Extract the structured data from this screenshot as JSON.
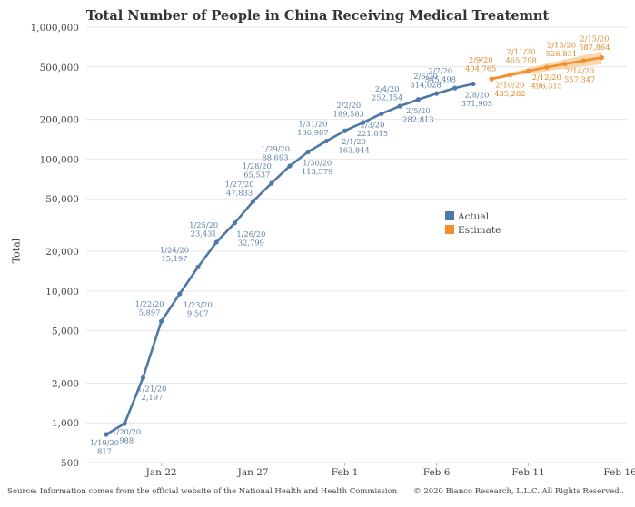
{
  "title": "Total Number of People in China Receiving Medical Treatemnt",
  "footer": {
    "source": "Source: Information comes from the official website of the National Health and Health Commission",
    "copyright": "© 2020 Bianco Research, L.L.C. All Rights Reserved.."
  },
  "colors": {
    "actual": "#4e79a7",
    "estimate": "#f28e2b",
    "band": "#f9c996",
    "grid": "#e6e6e6"
  },
  "chart_data": {
    "type": "line",
    "title": "Total Number of People in China Receiving Medical Treatemnt",
    "xlabel": "",
    "ylabel": "Total",
    "yscale": "log",
    "ylim": [
      500,
      1000000
    ],
    "y_ticks": [
      500,
      1000,
      2000,
      5000,
      10000,
      20000,
      50000,
      100000,
      200000,
      500000,
      1000000
    ],
    "y_tick_labels": [
      "500",
      "1,000",
      "2,000",
      "5,000",
      "10,000",
      "20,000",
      "50,000",
      "100,000",
      "200,000",
      "500,000",
      "1,000,000"
    ],
    "x_ticks": [
      "1/22/20",
      "1/27/20",
      "2/1/20",
      "2/6/20",
      "2/11/20",
      "2/16/20"
    ],
    "x_tick_labels": [
      "Jan 22",
      "Jan 27",
      "Feb 1",
      "Feb 6",
      "Feb 11",
      "Feb 16"
    ],
    "grid": true,
    "legend": {
      "position": "right",
      "entries": [
        "Actual",
        "Estimate"
      ]
    },
    "series": [
      {
        "name": "Actual",
        "x": [
          "1/19/20",
          "1/20/20",
          "1/21/20",
          "1/22/20",
          "1/23/20",
          "1/24/20",
          "1/25/20",
          "1/26/20",
          "1/27/20",
          "1/28/20",
          "1/29/20",
          "1/30/20",
          "1/31/20",
          "2/1/20",
          "2/2/20",
          "2/3/20",
          "2/4/20",
          "2/5/20",
          "2/6/20",
          "2/7/20",
          "2/8/20"
        ],
        "values": [
          817,
          988,
          2197,
          5897,
          9507,
          15197,
          23431,
          32799,
          47833,
          65537,
          88693,
          113579,
          136987,
          163844,
          189583,
          221015,
          252154,
          282813,
          314028,
          345498,
          371905
        ],
        "labels": [
          "1/19/20\n817",
          "1/20/20\n988",
          "1/21/20\n2,197",
          "1/22/20\n5,897",
          "1/23/20\n9,507",
          "1/24/20\n15,197",
          "1/25/20\n23,431",
          "1/26/20\n32,799",
          "1/27/20\n47,833",
          "1/28/20\n65,537",
          "1/29/20\n88,693",
          "1/30/20\n113,579",
          "1/31/20\n136,987",
          "2/1/20\n163,844",
          "2/2/20\n189,583",
          "2/3/20\n221,015",
          "2/4/20\n252,154",
          "2/5/20\n282,813",
          "2/6/20\n314,028",
          "2/7/20\n345,498",
          "2/8/20\n371,905"
        ]
      },
      {
        "name": "Estimate",
        "x": [
          "2/9/20",
          "2/10/20",
          "2/11/20",
          "2/12/20",
          "2/13/20",
          "2/14/20",
          "2/15/20"
        ],
        "values": [
          404765,
          435282,
          465798,
          496315,
          526831,
          557347,
          587864
        ],
        "labels": [
          "2/9/20\n404,765",
          "2/10/20\n435,282",
          "2/11/20\n465,798",
          "2/12/20\n496,315",
          "2/13/20\n526,831",
          "2/14/20\n557,347",
          "2/15/20\n587,864"
        ]
      }
    ]
  }
}
